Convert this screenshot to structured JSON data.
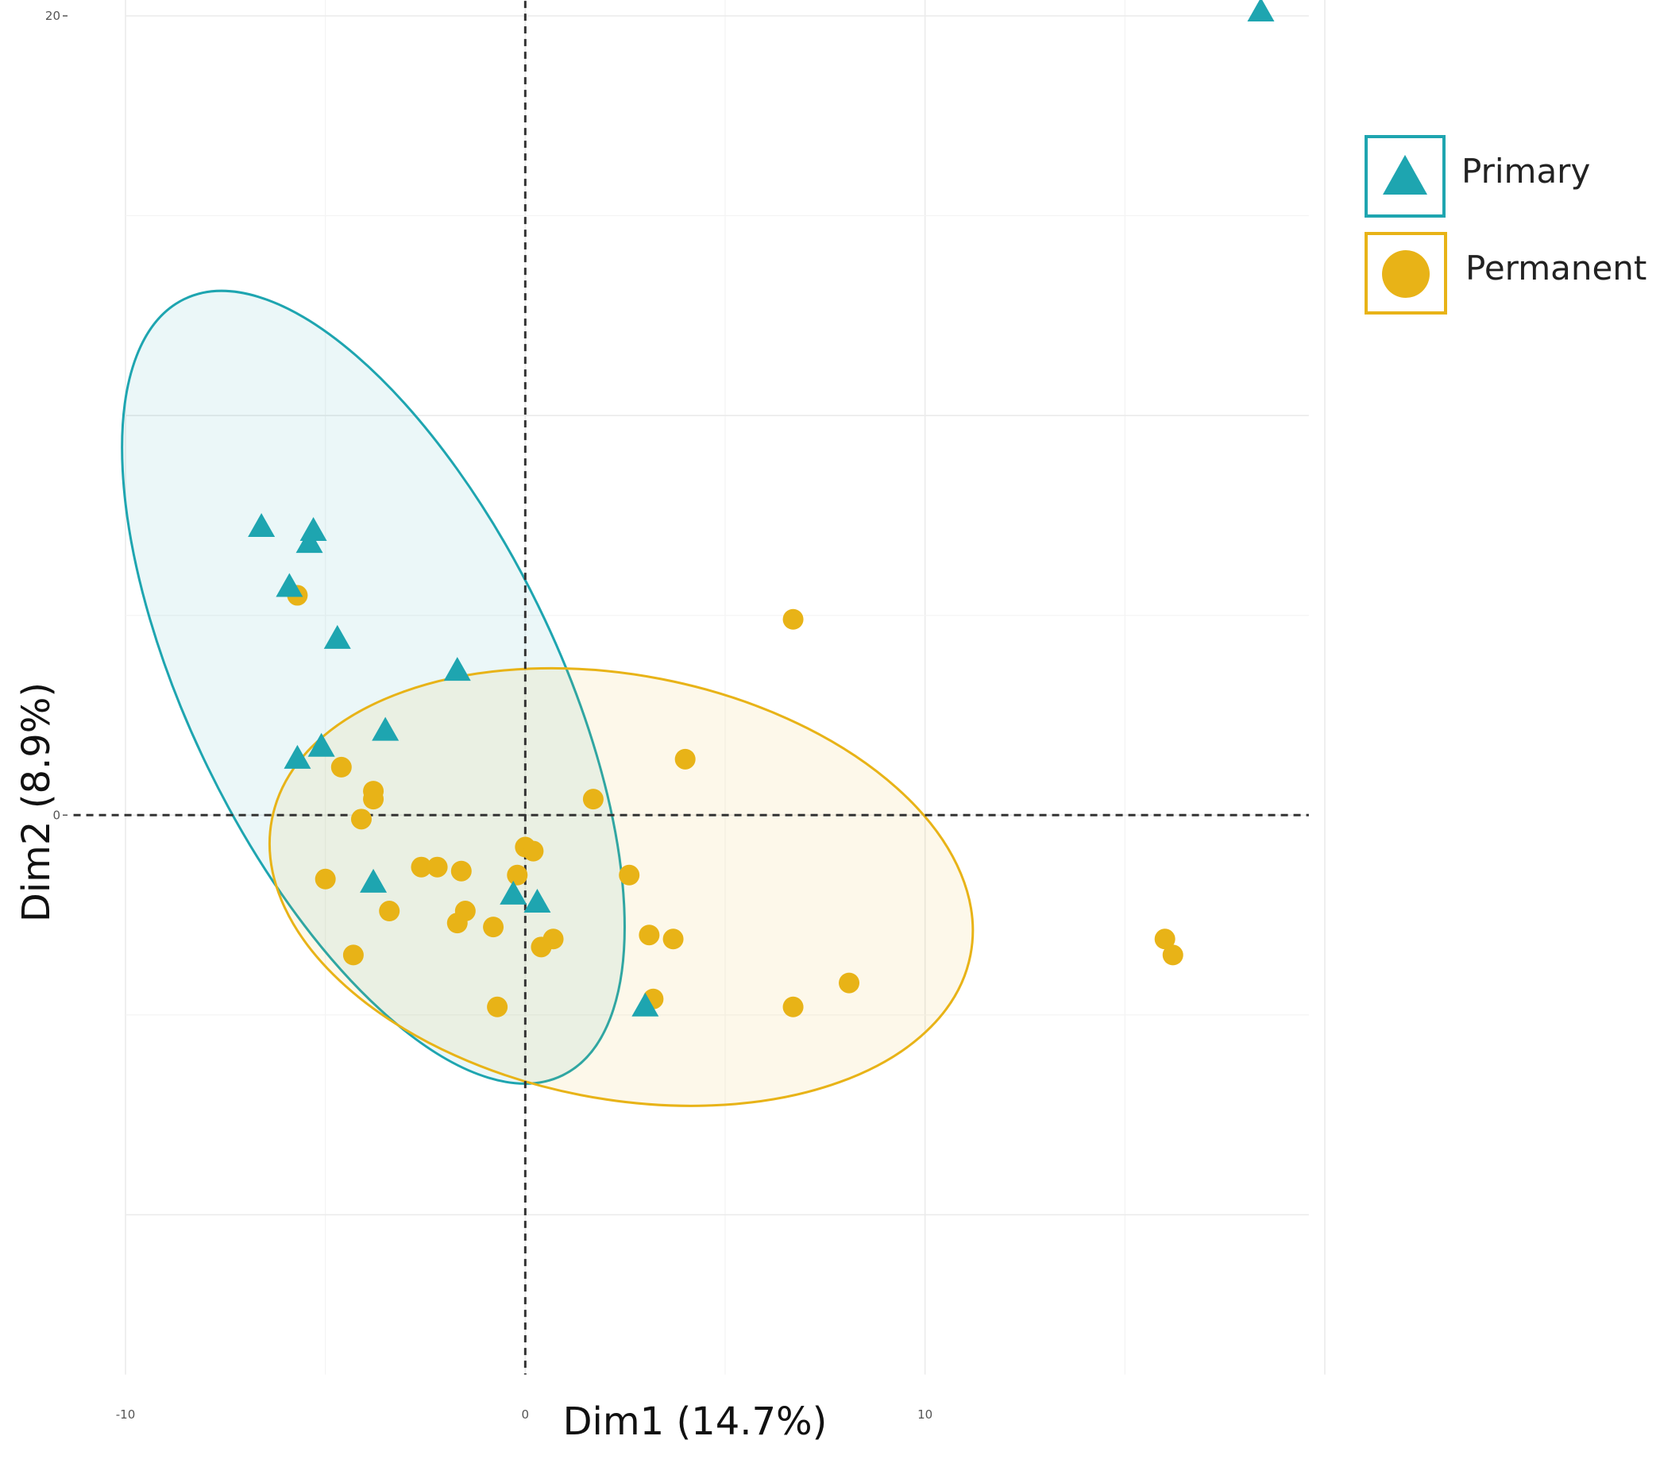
{
  "chart_data": {
    "type": "scatter",
    "xlabel": "Dim1 (14.7%)",
    "ylabel": "Dim2 (8.9%)",
    "xlim": [
      -10,
      20
    ],
    "ylim": [
      -15,
      20
    ],
    "x_ticks": [
      -10,
      0,
      10
    ],
    "y_ticks": [
      0,
      20
    ],
    "grid": true,
    "reference_lines": {
      "x": 0,
      "y": 0,
      "style": "dashed"
    },
    "legend_position": "top-right",
    "series": [
      {
        "name": "Primary",
        "marker": "triangle",
        "color": "#1EA5B0",
        "ellipse": {
          "cx": -3.8,
          "cy": 3.2,
          "rx": 10.8,
          "ry": 4.6,
          "angle_deg": -64
        },
        "points": [
          {
            "x": 18.4,
            "y": 20.1
          },
          {
            "x": -6.6,
            "y": 7.2
          },
          {
            "x": -5.3,
            "y": 7.1
          },
          {
            "x": -5.4,
            "y": 6.8
          },
          {
            "x": -5.9,
            "y": 5.7
          },
          {
            "x": -4.7,
            "y": 4.4
          },
          {
            "x": -1.7,
            "y": 3.6
          },
          {
            "x": -3.5,
            "y": 2.1
          },
          {
            "x": -5.1,
            "y": 1.7
          },
          {
            "x": -5.7,
            "y": 1.4
          },
          {
            "x": -3.8,
            "y": -1.7
          },
          {
            "x": -0.3,
            "y": -2.0
          },
          {
            "x": 0.3,
            "y": -2.2
          },
          {
            "x": 3.0,
            "y": -4.8
          }
        ]
      },
      {
        "name": "Permanent",
        "marker": "circle",
        "color": "#E8B317",
        "ellipse": {
          "cx": 2.4,
          "cy": -1.8,
          "rx": 8.9,
          "ry": 5.3,
          "angle_deg": -11
        },
        "points": [
          {
            "x": -5.7,
            "y": 5.5
          },
          {
            "x": 6.7,
            "y": 4.9
          },
          {
            "x": 4.0,
            "y": 1.4
          },
          {
            "x": -4.6,
            "y": 1.2
          },
          {
            "x": -3.8,
            "y": 0.6
          },
          {
            "x": -3.8,
            "y": 0.4
          },
          {
            "x": 1.7,
            "y": 0.4
          },
          {
            "x": -4.1,
            "y": -0.1
          },
          {
            "x": 0.0,
            "y": -0.8
          },
          {
            "x": 0.2,
            "y": -0.9
          },
          {
            "x": -2.6,
            "y": -1.3
          },
          {
            "x": -2.2,
            "y": -1.3
          },
          {
            "x": -1.6,
            "y": -1.4
          },
          {
            "x": 2.6,
            "y": -1.5
          },
          {
            "x": -5.0,
            "y": -1.6
          },
          {
            "x": -0.2,
            "y": -1.5
          },
          {
            "x": -3.4,
            "y": -2.4
          },
          {
            "x": -1.5,
            "y": -2.4
          },
          {
            "x": -1.7,
            "y": -2.7
          },
          {
            "x": -0.8,
            "y": -2.8
          },
          {
            "x": 3.1,
            "y": -3.0
          },
          {
            "x": 3.7,
            "y": -3.1
          },
          {
            "x": 0.7,
            "y": -3.1
          },
          {
            "x": 0.4,
            "y": -3.3
          },
          {
            "x": 16.0,
            "y": -3.1
          },
          {
            "x": 16.2,
            "y": -3.5
          },
          {
            "x": -4.3,
            "y": -3.5
          },
          {
            "x": 8.1,
            "y": -4.2
          },
          {
            "x": 3.2,
            "y": -4.6
          },
          {
            "x": -0.7,
            "y": -4.8
          },
          {
            "x": 6.7,
            "y": -4.8
          }
        ]
      }
    ]
  }
}
